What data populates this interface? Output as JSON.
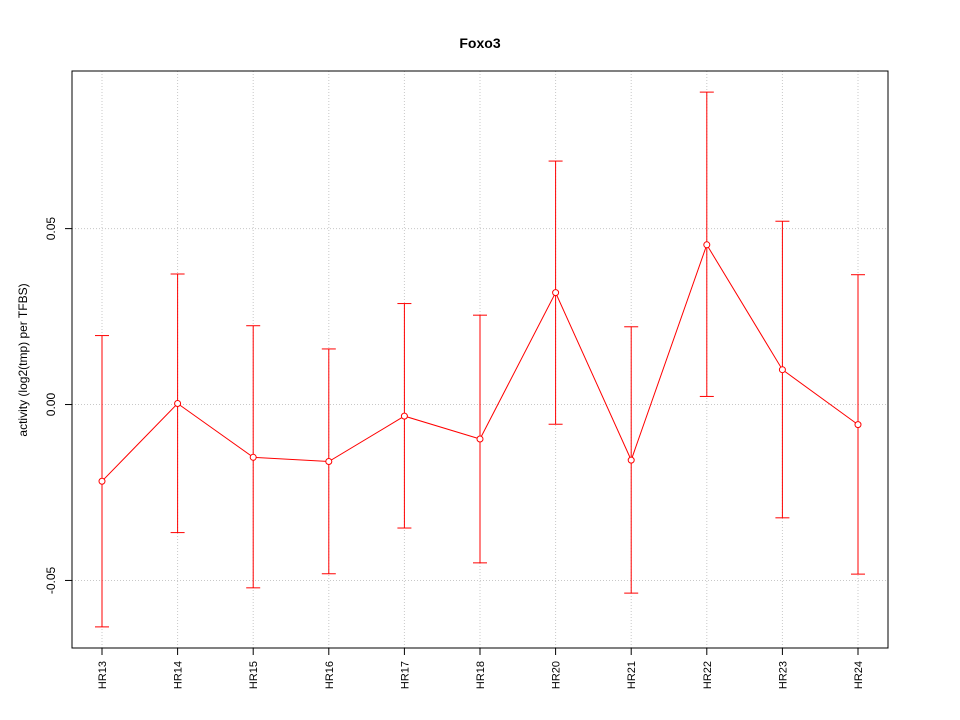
{
  "chart_data": {
    "type": "line",
    "title": "Foxo3",
    "xlabel": "",
    "ylabel": "activity (log2(tmp) per TFBS)",
    "categories": [
      "HR13",
      "HR14",
      "HR15",
      "HR16",
      "HR17",
      "HR18",
      "HR20",
      "HR21",
      "HR22",
      "HR23",
      "HR24"
    ],
    "series": [
      {
        "values": [
          -0.0218,
          0.0003,
          -0.015,
          -0.0162,
          -0.0033,
          -0.0098,
          0.0318,
          -0.0158,
          0.0454,
          0.0099,
          -0.0057
        ],
        "upper": [
          0.0196,
          0.0371,
          0.0224,
          0.0158,
          0.0287,
          0.0254,
          0.0692,
          0.0221,
          0.0888,
          0.0521,
          0.0369
        ],
        "lower": [
          -0.0632,
          -0.0364,
          -0.0521,
          -0.0481,
          -0.0351,
          -0.045,
          -0.0056,
          -0.0536,
          0.0023,
          -0.0322,
          -0.0482
        ]
      }
    ],
    "y_ticks": [
      -0.05,
      0.0,
      0.05
    ],
    "y_tick_labels": [
      "-0.05",
      "0.00",
      "0.05"
    ],
    "ylim": [
      -0.0692,
      0.0948
    ],
    "grid": true,
    "colors": {
      "series": "#ff0000",
      "grid": "#c8c8c8"
    }
  }
}
